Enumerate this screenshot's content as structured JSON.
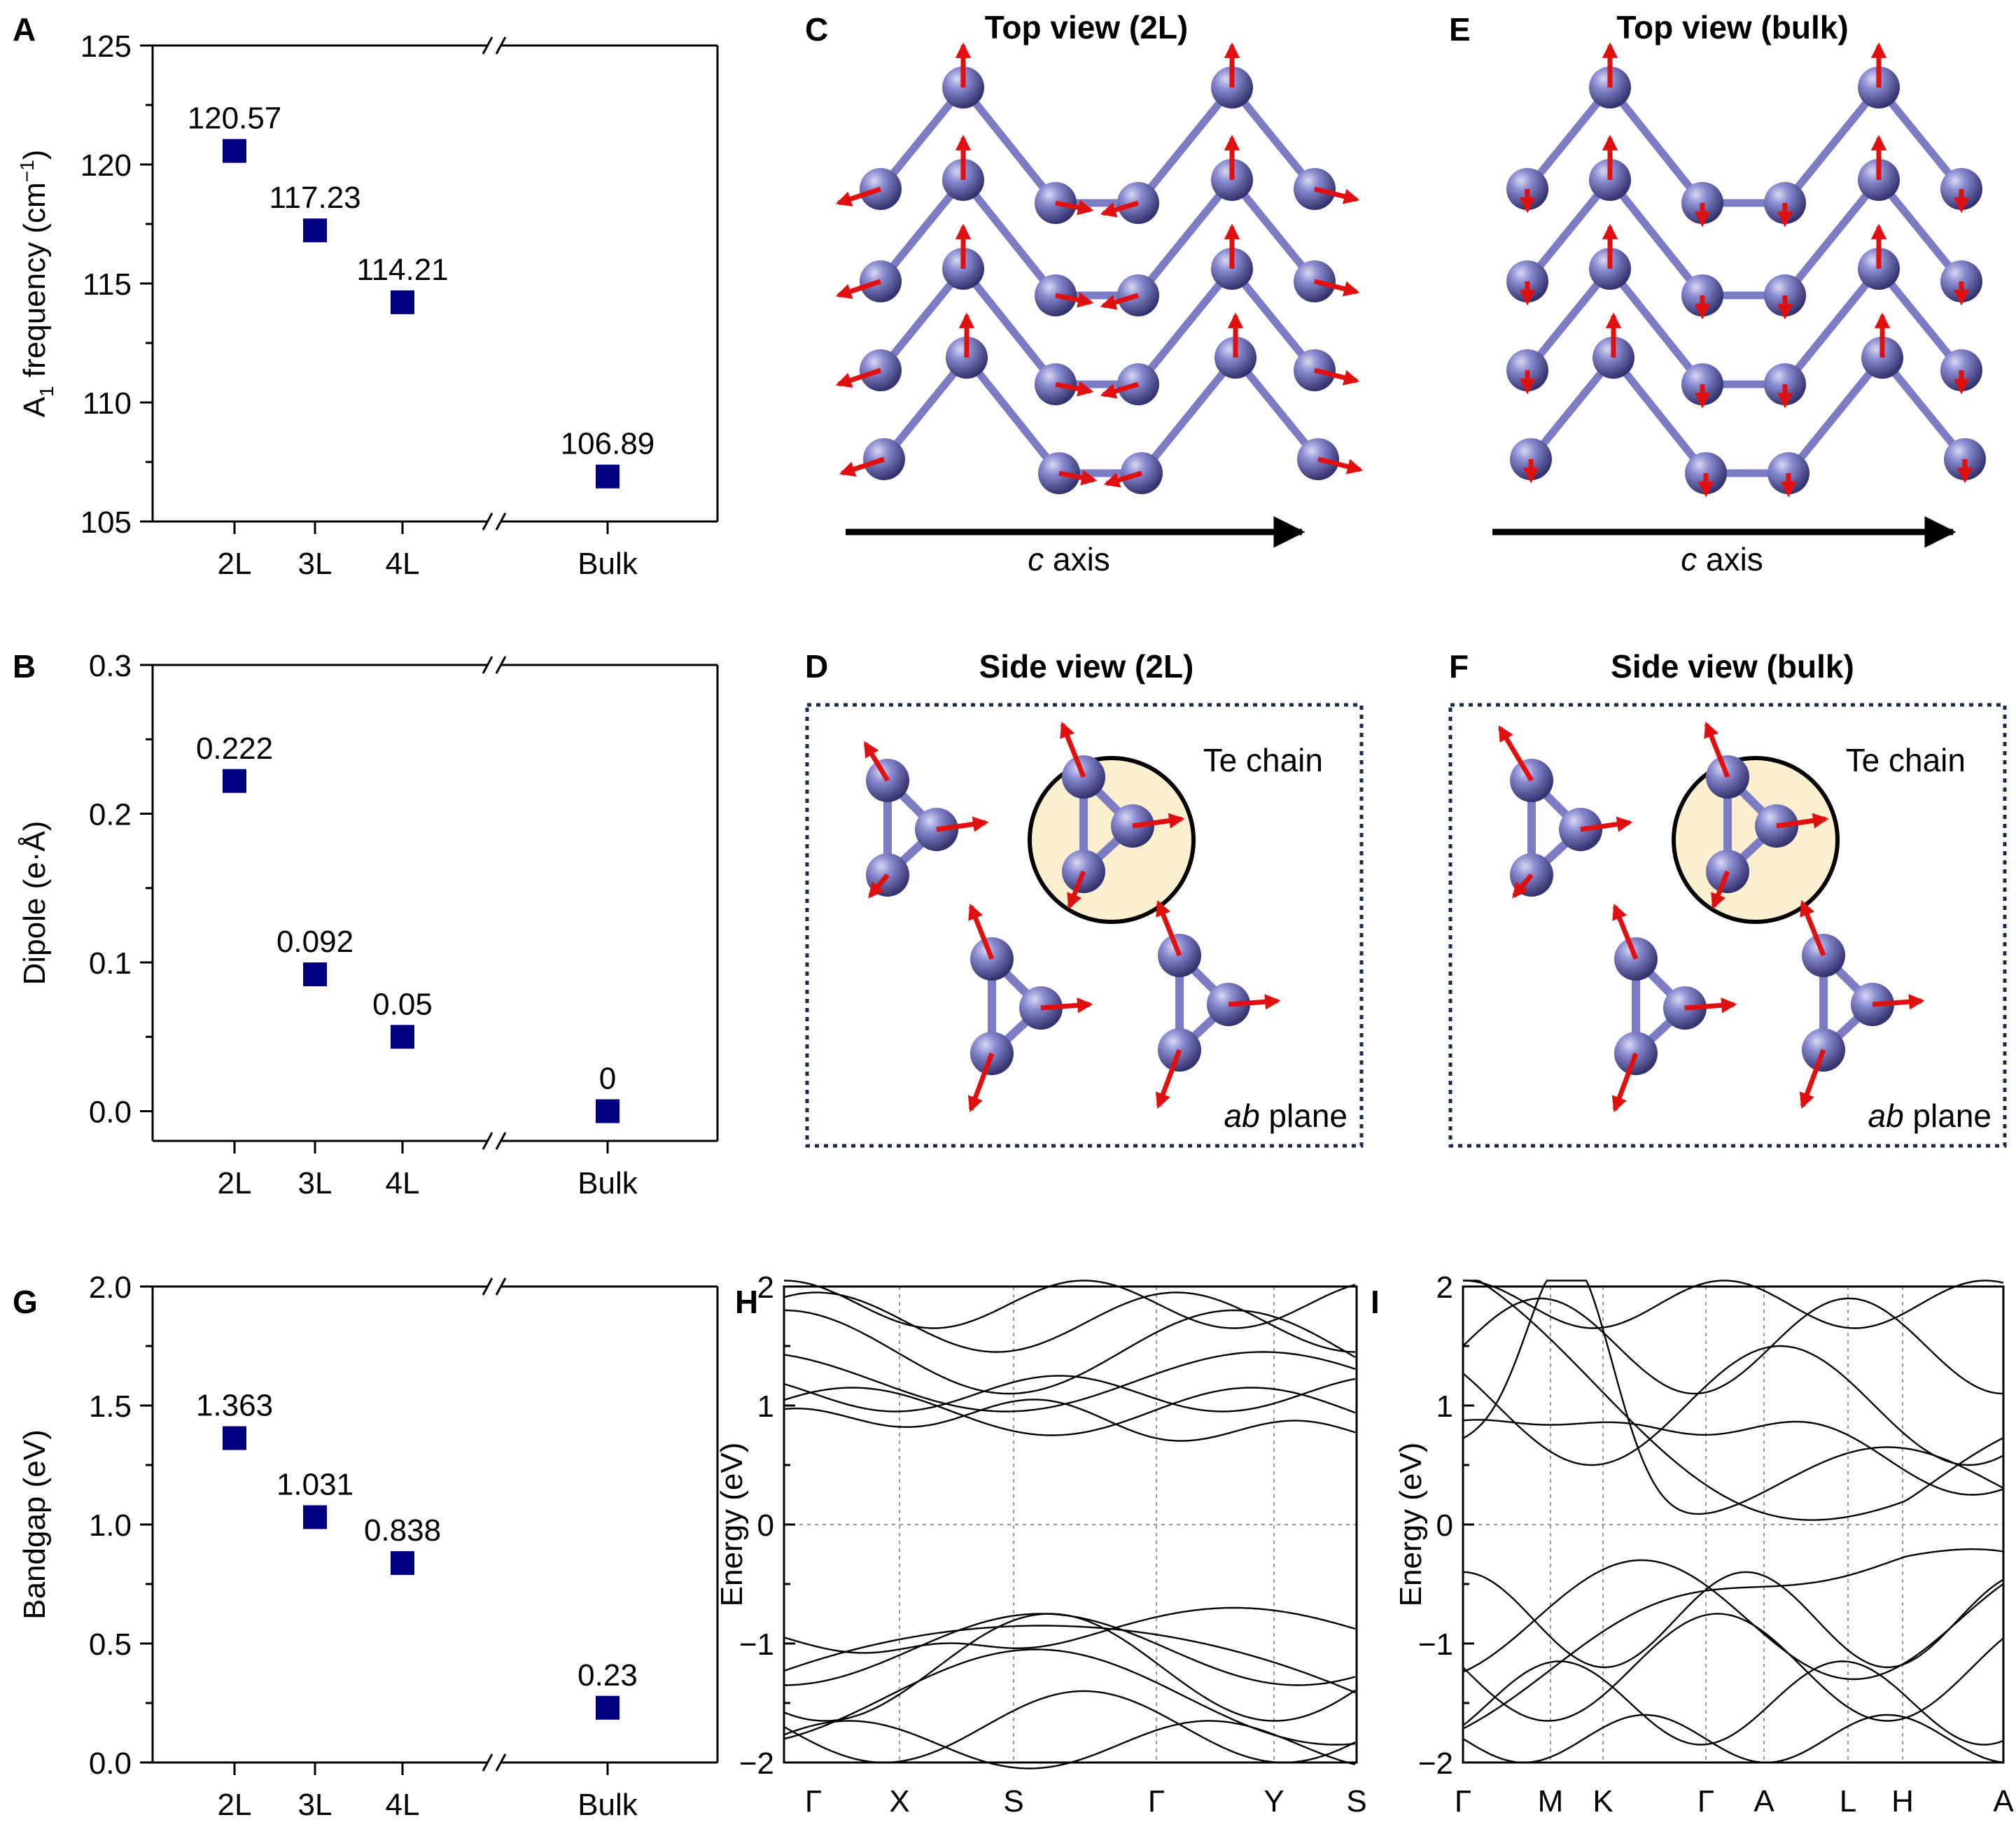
{
  "panels": {
    "A": "A",
    "B": "B",
    "C": "C",
    "D": "D",
    "E": "E",
    "F": "F",
    "G": "G",
    "H": "H",
    "I": "I"
  },
  "structure": {
    "top_view_2l": "Top view (2L)",
    "top_view_bulk": "Top view (bulk)",
    "side_view_2l": "Side view (2L)",
    "side_view_bulk": "Side view (bulk)",
    "axis_label_italic": "c",
    "axis_label_rest": " axis",
    "te_chain": "Te chain",
    "plane_italic": "ab",
    "plane_rest": " plane"
  },
  "colors": {
    "marker": "#000080",
    "atom": "#6b6bbb",
    "bond": "#7c7cc4",
    "arrow": "#e01010",
    "chain_fill": "#fbefcf",
    "dotted_frame": "#1a2a4a"
  },
  "chart_data": [
    {
      "id": "A",
      "type": "scatter",
      "ylabel": "A1 frequency (cm−1)",
      "ylabel_main": "A",
      "ylabel_sub": "1",
      "ylabel_mid": " frequency (cm",
      "ylabel_sup": "−1",
      "ylabel_end": ")",
      "categories": [
        "2L",
        "3L",
        "4L",
        "Bulk"
      ],
      "values": [
        120.57,
        117.23,
        114.21,
        106.89
      ],
      "labels": [
        "120.57",
        "117.23",
        "114.21",
        "106.89"
      ],
      "ylim": [
        105,
        125
      ],
      "yticks": [
        "105",
        "110",
        "115",
        "120",
        "125"
      ],
      "axis_break": true
    },
    {
      "id": "B",
      "type": "scatter",
      "ylabel": "Dipole (e·Å)",
      "categories": [
        "2L",
        "3L",
        "4L",
        "Bulk"
      ],
      "values": [
        0.222,
        0.092,
        0.05,
        0
      ],
      "labels": [
        "0.222",
        "0.092",
        "0.05",
        "0"
      ],
      "ylim": [
        -0.02,
        0.3
      ],
      "yticks": [
        "0.0",
        "0.1",
        "0.2",
        "0.3"
      ],
      "axis_break": true
    },
    {
      "id": "G",
      "type": "scatter",
      "ylabel": "Bandgap (eV)",
      "categories": [
        "2L",
        "3L",
        "4L",
        "Bulk"
      ],
      "values": [
        1.363,
        1.031,
        0.838,
        0.23
      ],
      "labels": [
        "1.363",
        "1.031",
        "0.838",
        "0.23"
      ],
      "ylim": [
        0,
        2
      ],
      "yticks": [
        "0.0",
        "0.5",
        "1.0",
        "1.5",
        "2.0"
      ],
      "axis_break": true
    },
    {
      "id": "H",
      "type": "line",
      "ylabel": "Energy (eV)",
      "ylim": [
        -2,
        2
      ],
      "yticks": [
        "−2",
        "−1",
        "0",
        "1",
        "2"
      ],
      "kpoints": [
        "Γ",
        "X",
        "S",
        "Γ",
        "Y",
        "S"
      ],
      "note": "band structure, 2L Te; valence band maximum near -0.68 eV between S and Γ, conduction bands from about 0.7 eV"
    },
    {
      "id": "I",
      "type": "line",
      "ylabel": "Energy (eV)",
      "ylim": [
        -2,
        2
      ],
      "yticks": [
        "−2",
        "−1",
        "0",
        "1",
        "2"
      ],
      "kpoints": [
        "Γ",
        "M",
        "K",
        "Γ",
        "A",
        "L",
        "H",
        "A"
      ],
      "note": "band structure, bulk Te; valence band maximum near -0.13 eV at H, conduction band minimum near 0.1 eV at H"
    }
  ]
}
